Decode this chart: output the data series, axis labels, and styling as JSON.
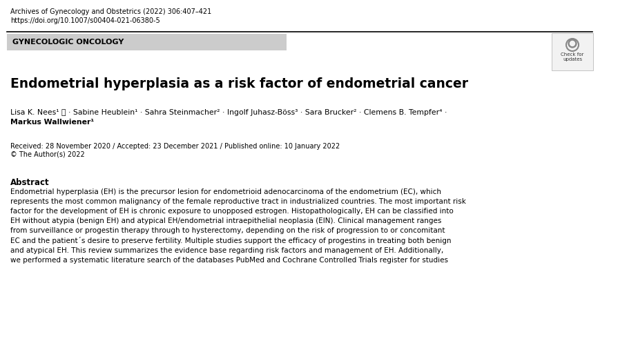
{
  "journal_line1": "Archives of Gynecology and Obstetrics (2022) 306:407–421",
  "journal_line2": "https://doi.org/10.1007/s00404-021-06380-5",
  "section_label": "GYNECOLOGIC ONCOLOGY",
  "section_bg": "#cccccc",
  "title": "Endometrial hyperplasia as a risk factor of endometrial cancer",
  "authors_line1": "Lisa K. Nees¹ ⓘ · Sabine Heublein¹ · Sahra Steinmacher² · Ingolf Juhasz-Böss³ · Sara Brucker² · Clemens B. Tempfer⁴ ·",
  "authors_line2": "Markus Wallwiener¹",
  "dates_line1": "Received: 28 November 2020 / Accepted: 23 December 2021 / Published online: 10 January 2022",
  "dates_line2": "© The Author(s) 2022",
  "abstract_title": "Abstract",
  "abstract_text": "Endometrial hyperplasia (EH) is the precursor lesion for endometrioid adenocarcinoma of the endometrium (EC), which\nrepresents the most common malignancy of the female reproductive tract in industrialized countries. The most important risk\nfactor for the development of EH is chronic exposure to unopposed estrogen. Histopathologically, EH can be classified into\nEH without atypia (benign EH) and atypical EH/endometrial intraepithelial neoplasia (EIN). Clinical management ranges\nfrom surveillance or progestin therapy through to hysterectomy, depending on the risk of progression to or concomitant\nEC and the patient´s desire to preserve fertility. Multiple studies support the efficacy of progestins in treating both benign\nand atypical EH. This review summarizes the evidence base regarding risk factors and management of EH. Additionally,\nwe performed a systematic literature search of the databases PubMed and Cochrane Controlled Trials register for studies",
  "bg_color": "#ffffff",
  "text_color": "#000000",
  "border_color": "#000000",
  "small_font": 7.0,
  "section_font": 8.0,
  "title_font": 13.5,
  "author_font": 7.8,
  "date_font": 7.0,
  "abstract_title_font": 8.5,
  "abstract_text_font": 7.5
}
